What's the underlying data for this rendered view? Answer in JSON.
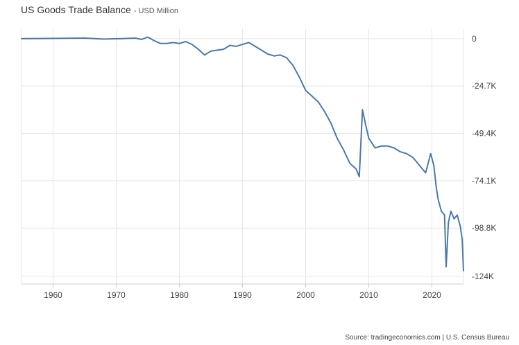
{
  "header": {
    "title": "US Goods Trade Balance",
    "subtitle": "- USD Million"
  },
  "footer": {
    "source": "Source: tradingeconomics.com | U.S. Census Bureau"
  },
  "colors": {
    "line": "#4a78b0",
    "grid": "#e6e6e6",
    "axis": "#cccccc"
  },
  "chart_data": {
    "type": "line",
    "title": "US Goods Trade Balance",
    "subtitle": "- USD Million",
    "xlabel": "",
    "ylabel": "",
    "xlim": [
      1955,
      2025
    ],
    "ylim": [
      -128000,
      5000
    ],
    "grid": true,
    "x_ticks": [
      1960,
      1970,
      1980,
      1990,
      2000,
      2010,
      2020
    ],
    "x_tick_labels": [
      "1960",
      "1970",
      "1980",
      "1990",
      "2000",
      "2010",
      "2020"
    ],
    "y_ticks": [
      0,
      -24700,
      -49400,
      -74100,
      -98800,
      -124000
    ],
    "y_tick_labels": [
      "0",
      "-24.7K",
      "-49.4K",
      "-74.1K",
      "-98.8K",
      "-124K"
    ],
    "series": [
      {
        "name": "",
        "x": [
          1955,
          1958,
          1962,
          1965,
          1968,
          1971,
          1973,
          1974,
          1975,
          1976,
          1977,
          1978,
          1979,
          1980,
          1981,
          1982,
          1983,
          1984,
          1985,
          1986,
          1987,
          1988,
          1989,
          1990,
          1991,
          1992,
          1993,
          1994,
          1995,
          1996,
          1997,
          1998,
          1999,
          2000,
          2001,
          2002,
          2003,
          2004,
          2005,
          2006,
          2007,
          2008,
          2008.5,
          2009,
          2009.5,
          2010,
          2011,
          2012,
          2013,
          2014,
          2015,
          2016,
          2017,
          2018,
          2019,
          2019.8,
          2020.3,
          2020.7,
          2021,
          2021.5,
          2022,
          2022.25,
          2022.6,
          2023,
          2023.5,
          2024,
          2024.5,
          2024.8,
          2025
        ],
        "values": [
          0,
          100,
          200,
          300,
          -200,
          0,
          300,
          -400,
          800,
          -1000,
          -2500,
          -2500,
          -2000,
          -2500,
          -1500,
          -3000,
          -5500,
          -8500,
          -6500,
          -6000,
          -5500,
          -3500,
          -4000,
          -3000,
          -2000,
          -4000,
          -6000,
          -8000,
          -9000,
          -8500,
          -10000,
          -14000,
          -20000,
          -27000,
          -30000,
          -33000,
          -38000,
          -44000,
          -52000,
          -58000,
          -65000,
          -68000,
          -72000,
          -37000,
          -45000,
          -52000,
          -57000,
          -56000,
          -56000,
          -57000,
          -59000,
          -60000,
          -62000,
          -66000,
          -70000,
          -60000,
          -66000,
          -78000,
          -84000,
          -90000,
          -92000,
          -119000,
          -96000,
          -90000,
          -94000,
          -92000,
          -98000,
          -105000,
          -121000
        ]
      }
    ]
  }
}
